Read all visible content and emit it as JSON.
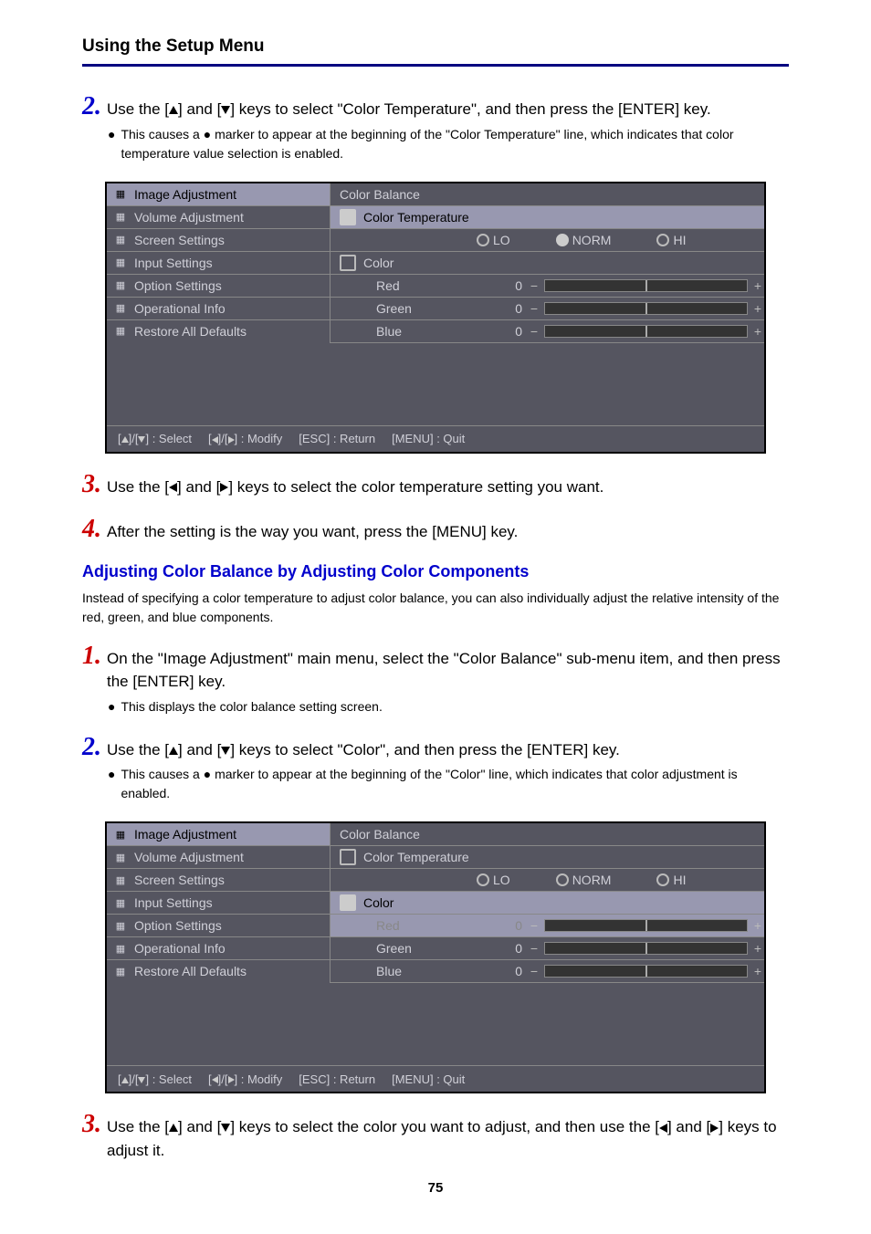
{
  "header": {
    "title": "Using the Setup Menu"
  },
  "step2": {
    "text_a": "Use the [",
    "text_b": "] and [",
    "text_c": "] keys to select \"Color Temperature\", and then press the [ENTER] key.",
    "bullet": "This causes a ● marker to appear at the beginning of the \"Color Temperature\" line, which indicates that color temperature value selection is enabled."
  },
  "osd1": {
    "left_items": [
      {
        "label": "Image Adjustment",
        "selected": true
      },
      {
        "label": "Volume Adjustment"
      },
      {
        "label": "Screen Settings"
      },
      {
        "label": "Input Settings"
      },
      {
        "label": "Option Settings"
      },
      {
        "label": "Operational Info"
      },
      {
        "label": "Restore All Defaults"
      }
    ],
    "right": {
      "title": "Color Balance",
      "sub": {
        "label": "Color Temperature",
        "selected": true,
        "filled": true
      },
      "radios": [
        {
          "label": "LO",
          "selected": false
        },
        {
          "label": "NORM",
          "selected": true
        },
        {
          "label": "HI",
          "selected": false
        }
      ],
      "sub2": {
        "label": "Color",
        "selected": false,
        "filled": false
      },
      "colors": [
        {
          "name": "Red",
          "val": "0",
          "selected": false,
          "dim": false
        },
        {
          "name": "Green",
          "val": "0",
          "selected": false,
          "dim": false
        },
        {
          "name": "Blue",
          "val": "0",
          "selected": false,
          "dim": false
        }
      ]
    },
    "footer": {
      "select": "[▲]/[▼] : Select",
      "modify": "[◄]/[►] : Modify",
      "ret": "[ESC] : Return",
      "quit": "[MENU] : Quit"
    }
  },
  "step3": {
    "text_a": "Use the [",
    "text_b": "] and [",
    "text_c": "] keys to select the color temperature setting you want."
  },
  "step4": {
    "text": "After the setting is the way you want, press the [MENU] key."
  },
  "subheading": "Adjusting Color Balance by Adjusting Color Components",
  "para": "Instead of specifying a color temperature to adjust color balance, you can also individually adjust the relative intensity of the red, green, and blue components.",
  "step1b": {
    "text": "On the \"Image Adjustment\" main menu, select the \"Color Balance\" sub-menu item, and then press the [ENTER] key.",
    "bullet": "This displays the color balance setting screen."
  },
  "step2b": {
    "text_a": "Use the [",
    "text_b": "] and [",
    "text_c": "] keys to select \"Color\", and then press the [ENTER] key.",
    "bullet": "This causes a ● marker to appear at the beginning of the \"Color\" line, which indicates that color adjustment is enabled."
  },
  "osd2": {
    "left_items": [
      {
        "label": "Image Adjustment",
        "selected": true
      },
      {
        "label": "Volume Adjustment"
      },
      {
        "label": "Screen Settings"
      },
      {
        "label": "Input Settings"
      },
      {
        "label": "Option Settings"
      },
      {
        "label": "Operational Info"
      },
      {
        "label": "Restore All Defaults"
      }
    ],
    "right": {
      "title": "Color Balance",
      "sub": {
        "label": "Color Temperature",
        "selected": false,
        "filled": false
      },
      "radios": [
        {
          "label": "LO",
          "selected": false
        },
        {
          "label": "NORM",
          "selected": false
        },
        {
          "label": "HI",
          "selected": false
        }
      ],
      "sub2": {
        "label": "Color",
        "selected": true,
        "filled": true
      },
      "colors": [
        {
          "name": "Red",
          "val": "0",
          "selected": true,
          "dim": true
        },
        {
          "name": "Green",
          "val": "0",
          "selected": false,
          "dim": false
        },
        {
          "name": "Blue",
          "val": "0",
          "selected": false,
          "dim": false
        }
      ]
    },
    "footer": {
      "select": "[▲]/[▼] : Select",
      "modify": "[◄]/[►] : Modify",
      "ret": "[ESC] : Return",
      "quit": "[MENU] : Quit"
    }
  },
  "step3b": {
    "text_a": "Use the [",
    "text_b": "] and [",
    "text_c": "] keys to select the color you want to adjust, and then use the [",
    "text_d": "] and [",
    "text_e": "] keys to adjust it."
  },
  "pagenum": "75"
}
